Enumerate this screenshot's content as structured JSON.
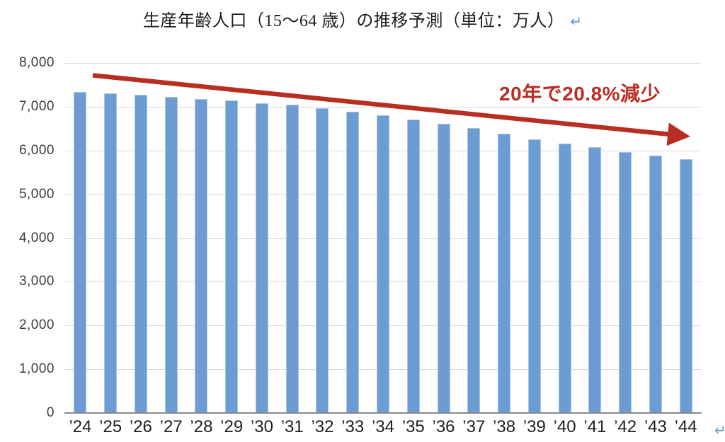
{
  "title": {
    "text": "生産年齢人口（15～64 歳）の推移予測（単位：万人）",
    "return_mark": "↵"
  },
  "annotation": {
    "label": "20年で20.8%減少"
  },
  "footer": {
    "return_mark": "↵"
  },
  "colors": {
    "bar": "#6D9CD3",
    "bar_border": "#A9C5E5",
    "grid": "#D9D9D9",
    "axis": "#8A8A8A",
    "accent_red": "#B92E23",
    "return_blue": "#5B9BD5"
  },
  "chart_data": {
    "type": "bar",
    "title": "生産年齢人口（15～64 歳）の推移予測（単位：万人）",
    "categories": [
      "’24",
      "’25",
      "’26",
      "’27",
      "’28",
      "’29",
      "’30",
      "’31",
      "’32",
      "’33",
      "’34",
      "’35",
      "’36",
      "’37",
      "’38",
      "’39",
      "’40",
      "’41",
      "’42",
      "’43",
      "’44"
    ],
    "values": [
      7330,
      7310,
      7280,
      7230,
      7180,
      7140,
      7080,
      7040,
      6970,
      6890,
      6800,
      6700,
      6610,
      6520,
      6380,
      6250,
      6160,
      6070,
      5970,
      5890,
      5810
    ],
    "xlabel": "",
    "ylabel": "",
    "ylim": [
      0,
      8000
    ],
    "ytick_interval": 1000,
    "ytick_labels": [
      "0",
      "1,000",
      "2,000",
      "3,000",
      "4,000",
      "5,000",
      "6,000",
      "7,000",
      "8,000"
    ],
    "grid": true,
    "legend": false,
    "annotation_text": "20年で20.8%減少",
    "annotation_meaning": "20.8% decrease over 20 years, shown with red downward trend arrow"
  }
}
